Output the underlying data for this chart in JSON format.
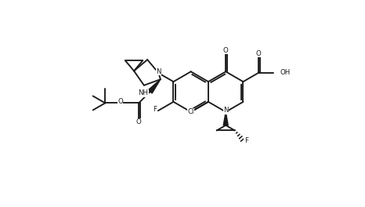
{
  "figsize": [
    4.66,
    2.64
  ],
  "dpi": 100,
  "bg": "#ffffff",
  "lc": "#1a1a1a",
  "lw": 1.35,
  "fs": 6.2,
  "xlim": [
    -0.5,
    9.5
  ],
  "ylim": [
    -0.3,
    5.8
  ],
  "bl": 0.58
}
